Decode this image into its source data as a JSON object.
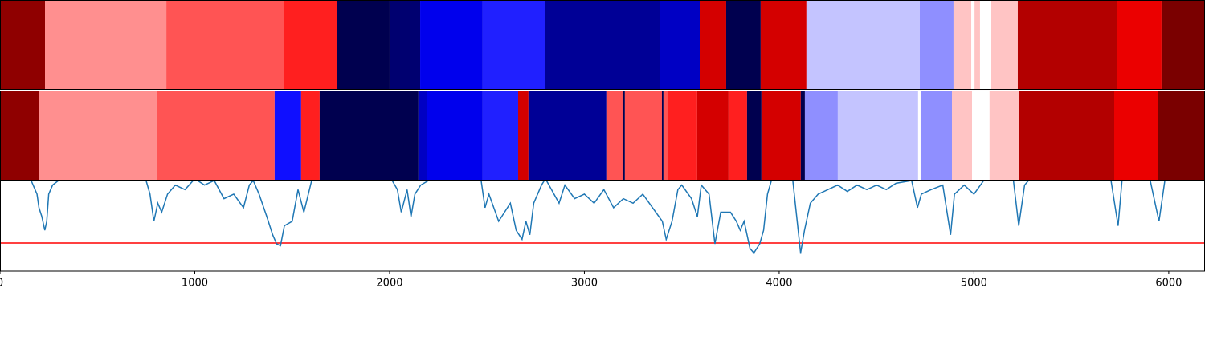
{
  "chart_data": {
    "type": "segmentation",
    "xlim": [
      0,
      6186
    ],
    "xticks": [
      0,
      1000,
      2000,
      3000,
      4000,
      5000,
      6000
    ],
    "rows": [
      {
        "segments": [
          {
            "start": 0,
            "end": 231,
            "color": "#8f0000"
          },
          {
            "start": 231,
            "end": 854,
            "color": "#ff8f8f"
          },
          {
            "start": 854,
            "end": 1456,
            "color": "#ff5454"
          },
          {
            "start": 1456,
            "end": 1728,
            "color": "#ff1f1f"
          },
          {
            "start": 1728,
            "end": 2000,
            "color": "#00004f"
          },
          {
            "start": 2000,
            "end": 2157,
            "color": "#000070"
          },
          {
            "start": 2157,
            "end": 2478,
            "color": "#0000ed"
          },
          {
            "start": 2478,
            "end": 2800,
            "color": "#2020ff"
          },
          {
            "start": 2800,
            "end": 3386,
            "color": "#000096"
          },
          {
            "start": 3386,
            "end": 3592,
            "color": "#0000c4"
          },
          {
            "start": 3592,
            "end": 3728,
            "color": "#d40000"
          },
          {
            "start": 3728,
            "end": 3905,
            "color": "#00004f"
          },
          {
            "start": 3905,
            "end": 4140,
            "color": "#d40000"
          },
          {
            "start": 4140,
            "end": 4722,
            "color": "#c4c4ff"
          },
          {
            "start": 4722,
            "end": 4895,
            "color": "#8f8fff"
          },
          {
            "start": 4895,
            "end": 4986,
            "color": "#ffc4c4"
          },
          {
            "start": 5003,
            "end": 5031,
            "color": "#ffc4c4"
          },
          {
            "start": 5085,
            "end": 5225,
            "color": "#ffc4c4"
          },
          {
            "start": 5225,
            "end": 5736,
            "color": "#b30000"
          },
          {
            "start": 5736,
            "end": 5963,
            "color": "#eb0000"
          },
          {
            "start": 5963,
            "end": 6186,
            "color": "#7a0000"
          }
        ]
      },
      {
        "segments": [
          {
            "start": 0,
            "end": 198,
            "color": "#8f0000"
          },
          {
            "start": 198,
            "end": 804,
            "color": "#ff8f8f"
          },
          {
            "start": 804,
            "end": 1410,
            "color": "#ff5454"
          },
          {
            "start": 1410,
            "end": 1546,
            "color": "#0f0fff"
          },
          {
            "start": 1546,
            "end": 1641,
            "color": "#ff1f1f"
          },
          {
            "start": 1641,
            "end": 2148,
            "color": "#00004f"
          },
          {
            "start": 2148,
            "end": 2190,
            "color": "#0000c4"
          },
          {
            "start": 2190,
            "end": 2478,
            "color": "#0000ed"
          },
          {
            "start": 2478,
            "end": 2660,
            "color": "#2020ff"
          },
          {
            "start": 2660,
            "end": 2713,
            "color": "#d40000"
          },
          {
            "start": 2713,
            "end": 3113,
            "color": "#000096"
          },
          {
            "start": 3113,
            "end": 3196,
            "color": "#ff5454"
          },
          {
            "start": 3196,
            "end": 3208,
            "color": "#00004f"
          },
          {
            "start": 3208,
            "end": 3398,
            "color": "#ff5454"
          },
          {
            "start": 3398,
            "end": 3406,
            "color": "#00004f"
          },
          {
            "start": 3406,
            "end": 3431,
            "color": "#ff5454"
          },
          {
            "start": 3431,
            "end": 3579,
            "color": "#ff1f1f"
          },
          {
            "start": 3579,
            "end": 3740,
            "color": "#d40000"
          },
          {
            "start": 3740,
            "end": 3835,
            "color": "#ff1f1f"
          },
          {
            "start": 3835,
            "end": 3909,
            "color": "#00004f"
          },
          {
            "start": 3909,
            "end": 4111,
            "color": "#d40000"
          },
          {
            "start": 4111,
            "end": 4132,
            "color": "#00004f"
          },
          {
            "start": 4132,
            "end": 4301,
            "color": "#8f8fff"
          },
          {
            "start": 4301,
            "end": 4713,
            "color": "#c4c4ff"
          },
          {
            "start": 4726,
            "end": 4887,
            "color": "#8f8fff"
          },
          {
            "start": 4887,
            "end": 4990,
            "color": "#ffc4c4"
          },
          {
            "start": 5080,
            "end": 5233,
            "color": "#ffc4c4"
          },
          {
            "start": 5233,
            "end": 5720,
            "color": "#b30000"
          },
          {
            "start": 5720,
            "end": 5946,
            "color": "#eb0000"
          },
          {
            "start": 5946,
            "end": 6186,
            "color": "#7a0000"
          }
        ]
      }
    ],
    "line": {
      "color": "#1f77b4",
      "x": [
        0,
        160,
        190,
        200,
        215,
        230,
        240,
        250,
        270,
        300,
        350,
        700,
        750,
        770,
        790,
        810,
        830,
        860,
        900,
        950,
        1000,
        1050,
        1100,
        1150,
        1200,
        1250,
        1280,
        1300,
        1330,
        1370,
        1400,
        1420,
        1440,
        1460,
        1500,
        1530,
        1560,
        1600,
        1650,
        2000,
        2040,
        2060,
        2090,
        2110,
        2130,
        2160,
        2200,
        2250,
        2440,
        2470,
        2490,
        2510,
        2560,
        2620,
        2650,
        2680,
        2700,
        2720,
        2740,
        2780,
        2800,
        2870,
        2900,
        2950,
        3000,
        3050,
        3100,
        3150,
        3200,
        3250,
        3300,
        3350,
        3400,
        3420,
        3450,
        3480,
        3500,
        3550,
        3580,
        3600,
        3640,
        3670,
        3700,
        3750,
        3780,
        3800,
        3820,
        3850,
        3870,
        3900,
        3920,
        3940,
        3960,
        4000,
        4070,
        4090,
        4110,
        4130,
        4160,
        4200,
        4250,
        4300,
        4350,
        4400,
        4450,
        4500,
        4550,
        4600,
        4680,
        4710,
        4730,
        4780,
        4840,
        4880,
        4900,
        4950,
        5000,
        5050,
        5100,
        5200,
        5230,
        5260,
        5300,
        5700,
        5740,
        5760,
        5900,
        5950,
        5980,
        6186
      ],
      "values": [
        1.05,
        1.0,
        0.85,
        0.7,
        0.6,
        0.45,
        0.55,
        0.85,
        0.95,
        1.0,
        1.05,
        1.05,
        1.0,
        0.85,
        0.55,
        0.75,
        0.65,
        0.85,
        0.95,
        0.9,
        1.02,
        0.95,
        1.0,
        0.8,
        0.85,
        0.7,
        0.95,
        1.0,
        0.85,
        0.6,
        0.4,
        0.3,
        0.28,
        0.5,
        0.55,
        0.9,
        0.65,
        1.0,
        1.05,
        1.05,
        0.9,
        0.65,
        0.9,
        0.6,
        0.85,
        0.95,
        1.0,
        1.05,
        1.05,
        1.0,
        0.7,
        0.85,
        0.55,
        0.75,
        0.45,
        0.35,
        0.55,
        0.4,
        0.75,
        0.95,
        1.02,
        0.75,
        0.95,
        0.8,
        0.85,
        0.75,
        0.9,
        0.7,
        0.8,
        0.75,
        0.85,
        0.7,
        0.55,
        0.35,
        0.55,
        0.9,
        0.95,
        0.8,
        0.6,
        0.95,
        0.85,
        0.3,
        0.65,
        0.65,
        0.55,
        0.45,
        0.55,
        0.25,
        0.2,
        0.3,
        0.45,
        0.85,
        1.0,
        1.05,
        1.0,
        0.6,
        0.2,
        0.45,
        0.75,
        0.85,
        0.9,
        0.95,
        0.88,
        0.95,
        0.9,
        0.95,
        0.9,
        0.97,
        1.0,
        0.7,
        0.85,
        0.9,
        0.95,
        0.4,
        0.85,
        0.95,
        0.85,
        1.0,
        1.05,
        1.05,
        0.5,
        0.95,
        1.05,
        1.05,
        0.5,
        1.0,
        1.05,
        0.55,
        1.0,
        1.05
      ]
    },
    "ylim": [
      0,
      1
    ],
    "hline": {
      "value": 0.31,
      "color": "#ff0000"
    }
  }
}
